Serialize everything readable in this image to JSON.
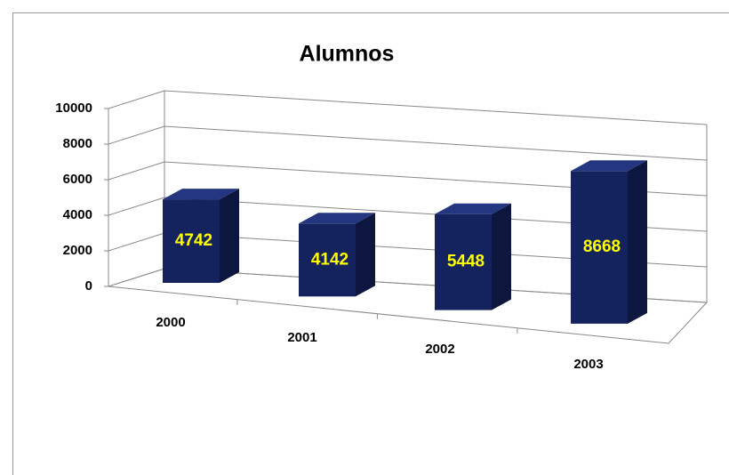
{
  "chart_data": {
    "type": "bar3d",
    "title": "Alumnos",
    "categories": [
      "2000",
      "2001",
      "2002",
      "2003"
    ],
    "values": [
      4742,
      4142,
      5448,
      8668
    ],
    "color": "#14235e",
    "label_color": "#ffff00",
    "ylim": [
      0,
      10000
    ],
    "yticks": [
      0,
      2000,
      4000,
      6000,
      8000,
      10000
    ],
    "grid": true
  }
}
